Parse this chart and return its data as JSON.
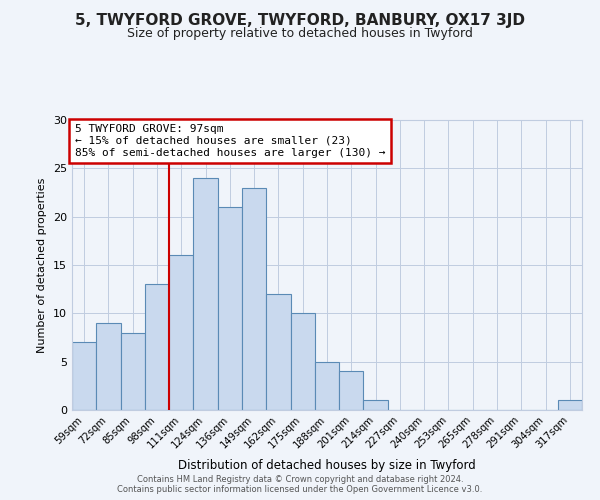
{
  "title": "5, TWYFORD GROVE, TWYFORD, BANBURY, OX17 3JD",
  "subtitle": "Size of property relative to detached houses in Twyford",
  "xlabel": "Distribution of detached houses by size in Twyford",
  "ylabel": "Number of detached properties",
  "bar_color": "#c9d9ee",
  "bar_edge_color": "#5a8ab5",
  "background_color": "#f0f4fa",
  "categories": [
    "59sqm",
    "72sqm",
    "85sqm",
    "98sqm",
    "111sqm",
    "124sqm",
    "136sqm",
    "149sqm",
    "162sqm",
    "175sqm",
    "188sqm",
    "201sqm",
    "214sqm",
    "227sqm",
    "240sqm",
    "253sqm",
    "265sqm",
    "278sqm",
    "291sqm",
    "304sqm",
    "317sqm"
  ],
  "values": [
    7,
    9,
    8,
    13,
    16,
    24,
    21,
    23,
    12,
    10,
    5,
    4,
    1,
    0,
    0,
    0,
    0,
    0,
    0,
    0,
    1
  ],
  "ylim": [
    0,
    30
  ],
  "yticks": [
    0,
    5,
    10,
    15,
    20,
    25,
    30
  ],
  "annotation_text": "5 TWYFORD GROVE: 97sqm\n← 15% of detached houses are smaller (23)\n85% of semi-detached houses are larger (130) →",
  "annotation_box_color": "#ffffff",
  "annotation_edge_color": "#cc0000",
  "vline_color": "#cc0000",
  "footer_line1": "Contains HM Land Registry data © Crown copyright and database right 2024.",
  "footer_line2": "Contains public sector information licensed under the Open Government Licence v3.0.",
  "grid_color": "#c0cce0",
  "title_fontsize": 11,
  "subtitle_fontsize": 9
}
